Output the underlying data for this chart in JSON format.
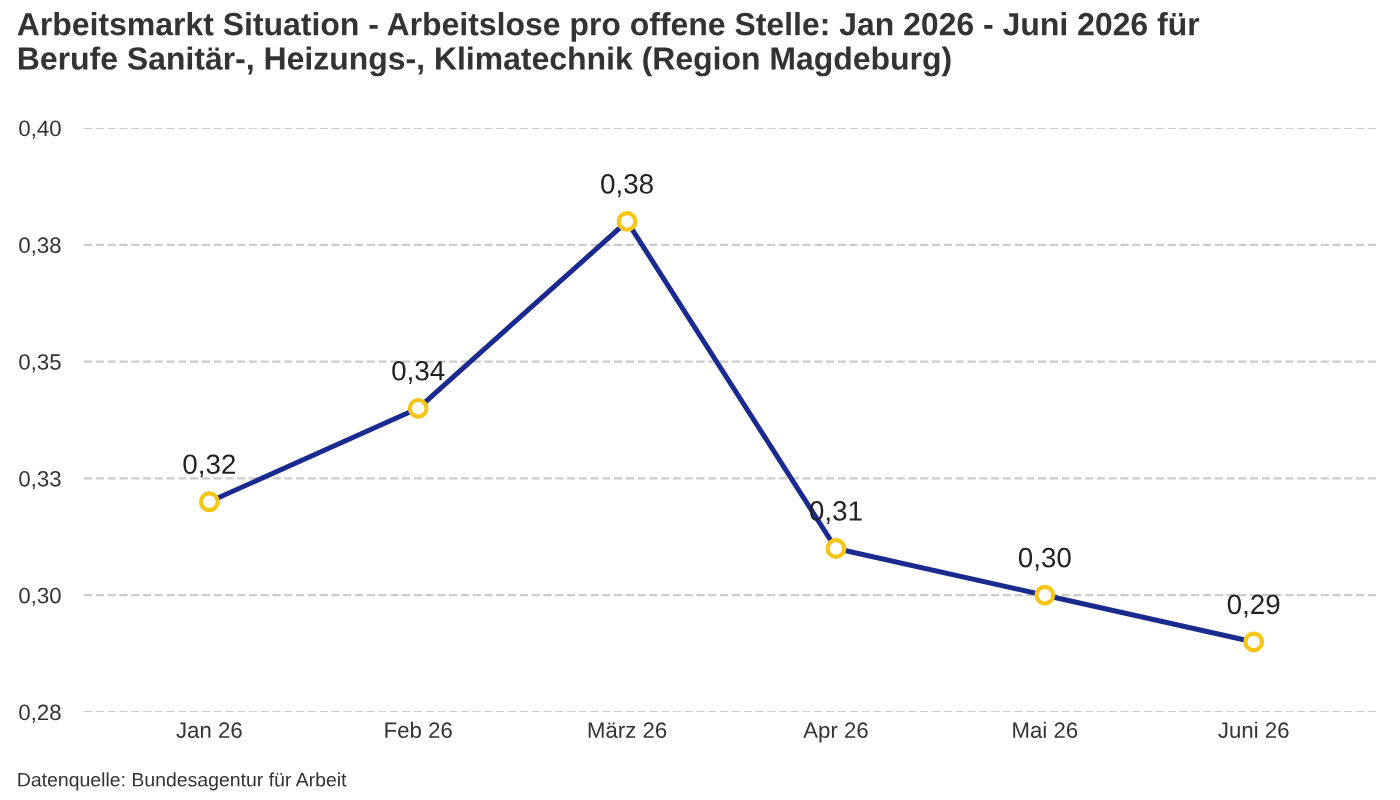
{
  "chart_data": {
    "type": "line",
    "title": "Arbeitsmarkt Situation - Arbeitslose pro offene Stelle: Jan 2026 - Juni 2026 für\nBerufe Sanitär-, Heizungs-, Klimatechnik (Region Magdeburg)",
    "categories": [
      "Jan 26",
      "Feb 26",
      "März 26",
      "Apr 26",
      "Mai 26",
      "Juni 26"
    ],
    "series": [
      {
        "color": "#1a2b8f",
        "colors": [
          "#f5c518",
          "#f5c518",
          "#f5c518",
          "#f5c518",
          "#f5c518",
          "#f5c518"
        ],
        "values": [
          0.32,
          0.34,
          0.38,
          0.31,
          0.3,
          0.29
        ],
        "value_labels": [
          "0,32",
          "0,34",
          "0,38",
          "0,31",
          "0,30",
          "0,29"
        ]
      }
    ],
    "ylim": [
      0.275,
      0.4
    ],
    "yticks": [
      {
        "value": 0.275,
        "label": "0,28"
      },
      {
        "value": 0.3,
        "label": "0,30"
      },
      {
        "value": 0.325,
        "label": "0,33"
      },
      {
        "value": 0.35,
        "label": "0,35"
      },
      {
        "value": 0.375,
        "label": "0,38"
      },
      {
        "value": 0.4,
        "label": "0,40"
      }
    ],
    "grid": "y",
    "marker": "circle",
    "line_style": "solid",
    "annotations": [
      "Datenquelle: Bundesagentur für Arbeit"
    ]
  }
}
